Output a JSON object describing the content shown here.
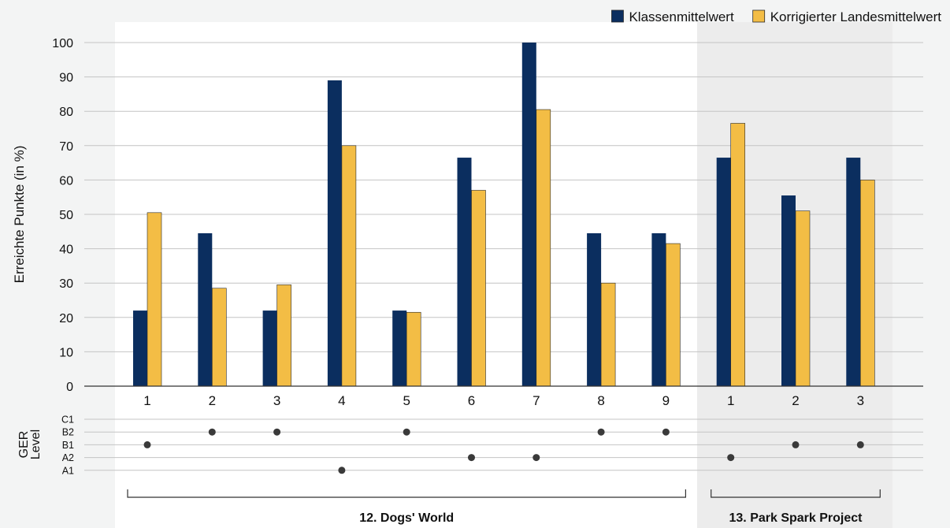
{
  "chart_data": {
    "type": "bar",
    "legend": {
      "placement": "top-right",
      "items": [
        {
          "label": "Klassenmittelwert",
          "color": "#0b2e5f"
        },
        {
          "label": "Korrigierter Landesmittelwert",
          "color": "#f3bd45"
        }
      ]
    },
    "ylabel": "Erreichte Punkte (in %)",
    "ylim": [
      0,
      100
    ],
    "yticks": [
      "0",
      "10",
      "20",
      "30",
      "40",
      "50",
      "60",
      "70",
      "80",
      "90",
      "100"
    ],
    "grid": true,
    "categories": [
      "1",
      "2",
      "3",
      "4",
      "5",
      "6",
      "7",
      "8",
      "9",
      "1",
      "2",
      "3"
    ],
    "series": [
      {
        "name": "Klassenmittelwert",
        "color": "#0b2e5f",
        "values": [
          22,
          44.5,
          22,
          89,
          22,
          66.5,
          100,
          44.5,
          44.5,
          66.5,
          55.5,
          66.5
        ]
      },
      {
        "name": "Korrigierter Landesmittelwert",
        "color": "#f3bd45",
        "values": [
          50.5,
          28.5,
          29.5,
          70,
          21.5,
          57,
          80.5,
          30,
          41.5,
          76.5,
          51,
          60
        ]
      }
    ],
    "ger": {
      "title": "GER Level",
      "levels": [
        "C1",
        "B2",
        "B1",
        "A2",
        "A1"
      ],
      "values": [
        "B1",
        "B2",
        "B2",
        "A1",
        "B2",
        "A2",
        "A2",
        "B2",
        "B2",
        "A2",
        "B1",
        "B1"
      ]
    },
    "groups": [
      {
        "label": "12. Dogs' World",
        "start": 0,
        "end": 8
      },
      {
        "label": "13. Park Spark Project",
        "start": 9,
        "end": 11
      }
    ],
    "colors": {
      "background_panel": "#f3f4f4",
      "highlight_band": "#ececec",
      "grid": "#c4c4c4",
      "axis": "#333333",
      "dot": "#3a3a3a"
    }
  }
}
